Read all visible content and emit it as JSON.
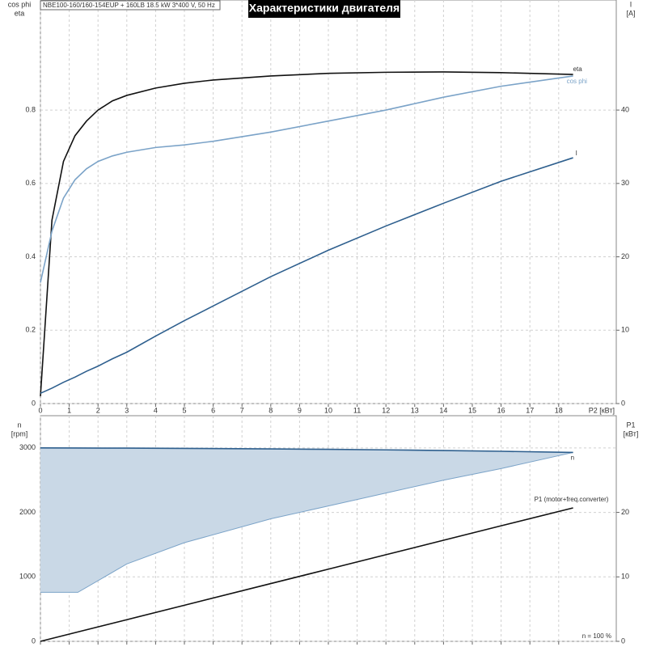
{
  "chart_data": [
    {
      "type": "line",
      "title": "Характеристики двигателя",
      "subtitle": "NBE100-160/160-154EUP + 160LB   18.5 kW   3*400 V, 50 Hz",
      "xlabel": "P2 [кВт]",
      "ylabel": [
        "cos phi",
        "eta"
      ],
      "y2label": [
        "I",
        "[A]"
      ],
      "xlim": [
        0,
        20
      ],
      "xticks": [
        0,
        1,
        2,
        3,
        4,
        5,
        6,
        7,
        8,
        9,
        10,
        11,
        12,
        13,
        14,
        15,
        16,
        17,
        18
      ],
      "ylim": [
        0,
        1.1
      ],
      "yticks": [
        0,
        0.2,
        0.4,
        0.6,
        0.8
      ],
      "y2lim": [
        0,
        55
      ],
      "y2ticks": [
        0,
        10,
        20,
        30,
        40
      ],
      "grid": true,
      "show_xtick_labels": true,
      "x": [
        0,
        0.4,
        0.8,
        1.2,
        1.6,
        2,
        2.5,
        3,
        4,
        5,
        6,
        8,
        10,
        12,
        14,
        16,
        18.5
      ],
      "series": [
        {
          "name": "eta",
          "color": "#111111",
          "values": [
            0.02,
            0.5,
            0.66,
            0.73,
            0.77,
            0.8,
            0.825,
            0.84,
            0.86,
            0.873,
            0.882,
            0.893,
            0.9,
            0.903,
            0.904,
            0.902,
            0.897
          ]
        },
        {
          "name": "cos phi",
          "color": "#7ba3c8",
          "values": [
            0.33,
            0.47,
            0.56,
            0.61,
            0.64,
            0.66,
            0.675,
            0.685,
            0.698,
            0.705,
            0.715,
            0.74,
            0.77,
            0.8,
            0.835,
            0.865,
            0.893
          ]
        },
        {
          "name": "I",
          "color": "#2e5f8e",
          "axis": "y2",
          "values": [
            1.4,
            2.1,
            2.9,
            3.6,
            4.4,
            5.1,
            6.1,
            7.0,
            9.2,
            11.3,
            13.3,
            17.3,
            20.9,
            24.2,
            27.3,
            30.3,
            33.5
          ]
        }
      ]
    },
    {
      "type": "line",
      "ylabel": [
        "n",
        "[rpm]"
      ],
      "y2label": [
        "P1",
        "[кВт]"
      ],
      "annotation": "n = 100 %",
      "xlim": [
        0,
        20
      ],
      "xticks": [
        0,
        1,
        2,
        3,
        4,
        5,
        6,
        7,
        8,
        9,
        10,
        11,
        12,
        13,
        14,
        15,
        16,
        17,
        18
      ],
      "ylim": [
        0,
        3500
      ],
      "yticks": [
        0,
        1000,
        2000,
        3000
      ],
      "y2lim": [
        0,
        35
      ],
      "y2ticks": [
        0,
        10,
        20
      ],
      "grid": true,
      "show_xtick_labels": false,
      "x": [
        0,
        1.3,
        3,
        5,
        8,
        10,
        12,
        14,
        16,
        18.5
      ],
      "series": [
        {
          "name": "n",
          "color": "#2e5f8e",
          "band_color": "#c9d8e6",
          "values": [
            3000,
            2999,
            2997,
            2993,
            2985,
            2978,
            2970,
            2960,
            2948,
            2930
          ],
          "lower": [
            760,
            760,
            1200,
            1530,
            1900,
            2100,
            2300,
            2500,
            2680,
            2930
          ]
        },
        {
          "name": "P1 (motor+freq.converter)",
          "color": "#111111",
          "axis": "y2",
          "values": [
            0,
            1.46,
            3.36,
            5.6,
            8.96,
            11.2,
            13.44,
            15.68,
            17.92,
            20.7
          ]
        }
      ]
    }
  ]
}
